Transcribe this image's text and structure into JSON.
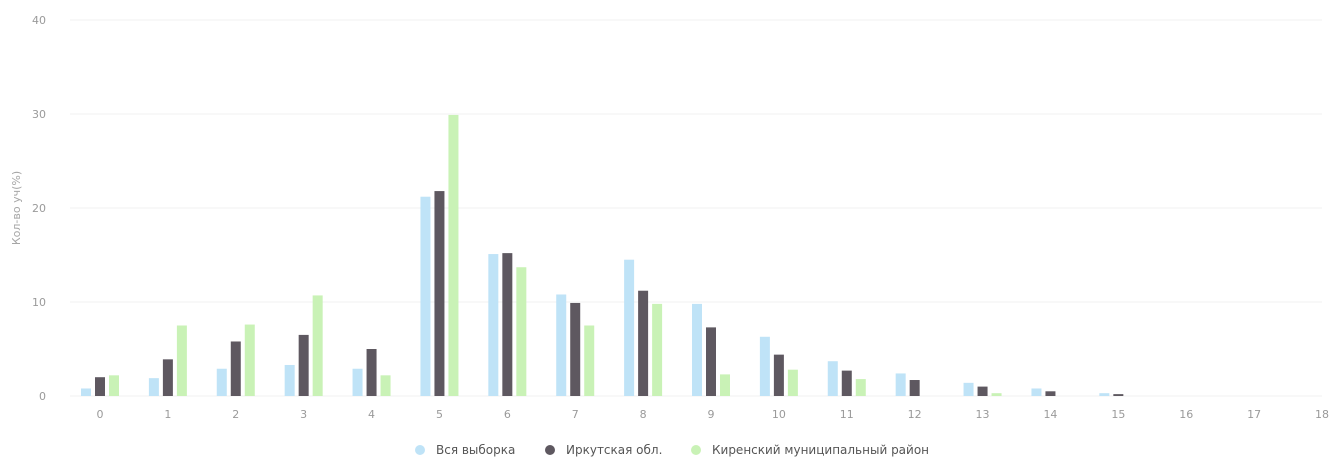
{
  "chart_data": {
    "type": "bar",
    "title": "",
    "xlabel": "",
    "ylabel": "Кол-во уч(%)",
    "ylim": [
      0,
      40
    ],
    "yticks": [
      0,
      10,
      20,
      30,
      40
    ],
    "categories": [
      "0",
      "1",
      "2",
      "3",
      "4",
      "5",
      "6",
      "7",
      "8",
      "9",
      "10",
      "11",
      "12",
      "13",
      "14",
      "15",
      "16",
      "17",
      "18"
    ],
    "legend_position": "bottom",
    "grid": true,
    "series": [
      {
        "name": "Вся выборка",
        "color": "#bfe3f7",
        "values": [
          0.8,
          1.9,
          2.9,
          3.3,
          2.9,
          21.2,
          15.1,
          10.8,
          14.5,
          9.8,
          6.3,
          3.7,
          2.4,
          1.4,
          0.8,
          0.3,
          0,
          0,
          0
        ]
      },
      {
        "name": "Иркутская обл.",
        "color": "#5e5860",
        "values": [
          2.0,
          3.9,
          5.8,
          6.5,
          5.0,
          21.8,
          15.2,
          9.9,
          11.2,
          7.3,
          4.4,
          2.7,
          1.7,
          1.0,
          0.5,
          0.2,
          0,
          0,
          0
        ]
      },
      {
        "name": "Киренский муниципальный район",
        "color": "#c9f2b6",
        "values": [
          2.2,
          7.5,
          7.6,
          10.7,
          2.2,
          29.9,
          13.7,
          7.5,
          9.8,
          2.3,
          2.8,
          1.8,
          0,
          0.3,
          0,
          0,
          0,
          0,
          0
        ]
      }
    ]
  }
}
